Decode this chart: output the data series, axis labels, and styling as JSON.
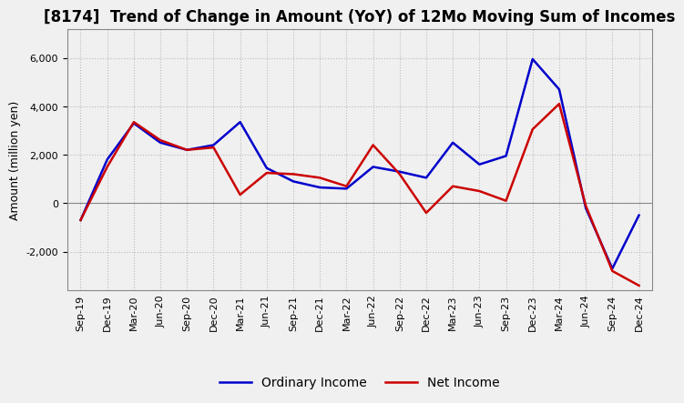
{
  "title": "[8174]  Trend of Change in Amount (YoY) of 12Mo Moving Sum of Incomes",
  "ylabel": "Amount (million yen)",
  "background_color": "#f0f0f0",
  "plot_background": "#f0f0f0",
  "grid_color": "#bbbbbb",
  "x_labels": [
    "Sep-19",
    "Dec-19",
    "Mar-20",
    "Jun-20",
    "Sep-20",
    "Dec-20",
    "Mar-21",
    "Jun-21",
    "Sep-21",
    "Dec-21",
    "Mar-22",
    "Jun-22",
    "Sep-22",
    "Dec-22",
    "Mar-23",
    "Jun-23",
    "Sep-23",
    "Dec-23",
    "Mar-24",
    "Jun-24",
    "Sep-24",
    "Dec-24"
  ],
  "ordinary_income": [
    -700,
    1800,
    3300,
    2500,
    2200,
    2400,
    3350,
    1450,
    900,
    650,
    600,
    1500,
    1300,
    1050,
    2500,
    1600,
    1950,
    5950,
    4700,
    -200,
    -2700,
    -500
  ],
  "net_income": [
    -700,
    1500,
    3350,
    2600,
    2200,
    2300,
    350,
    1250,
    1200,
    1050,
    700,
    2400,
    1200,
    -400,
    700,
    500,
    100,
    3050,
    4100,
    -100,
    -2800,
    -3400
  ],
  "ordinary_color": "#0000cc",
  "net_color": "#cc0000",
  "ylim": [
    -3600,
    7200
  ],
  "yticks": [
    -2000,
    0,
    2000,
    4000,
    6000
  ],
  "line_width": 1.8,
  "title_fontsize": 12,
  "legend_fontsize": 10,
  "tick_fontsize": 8
}
